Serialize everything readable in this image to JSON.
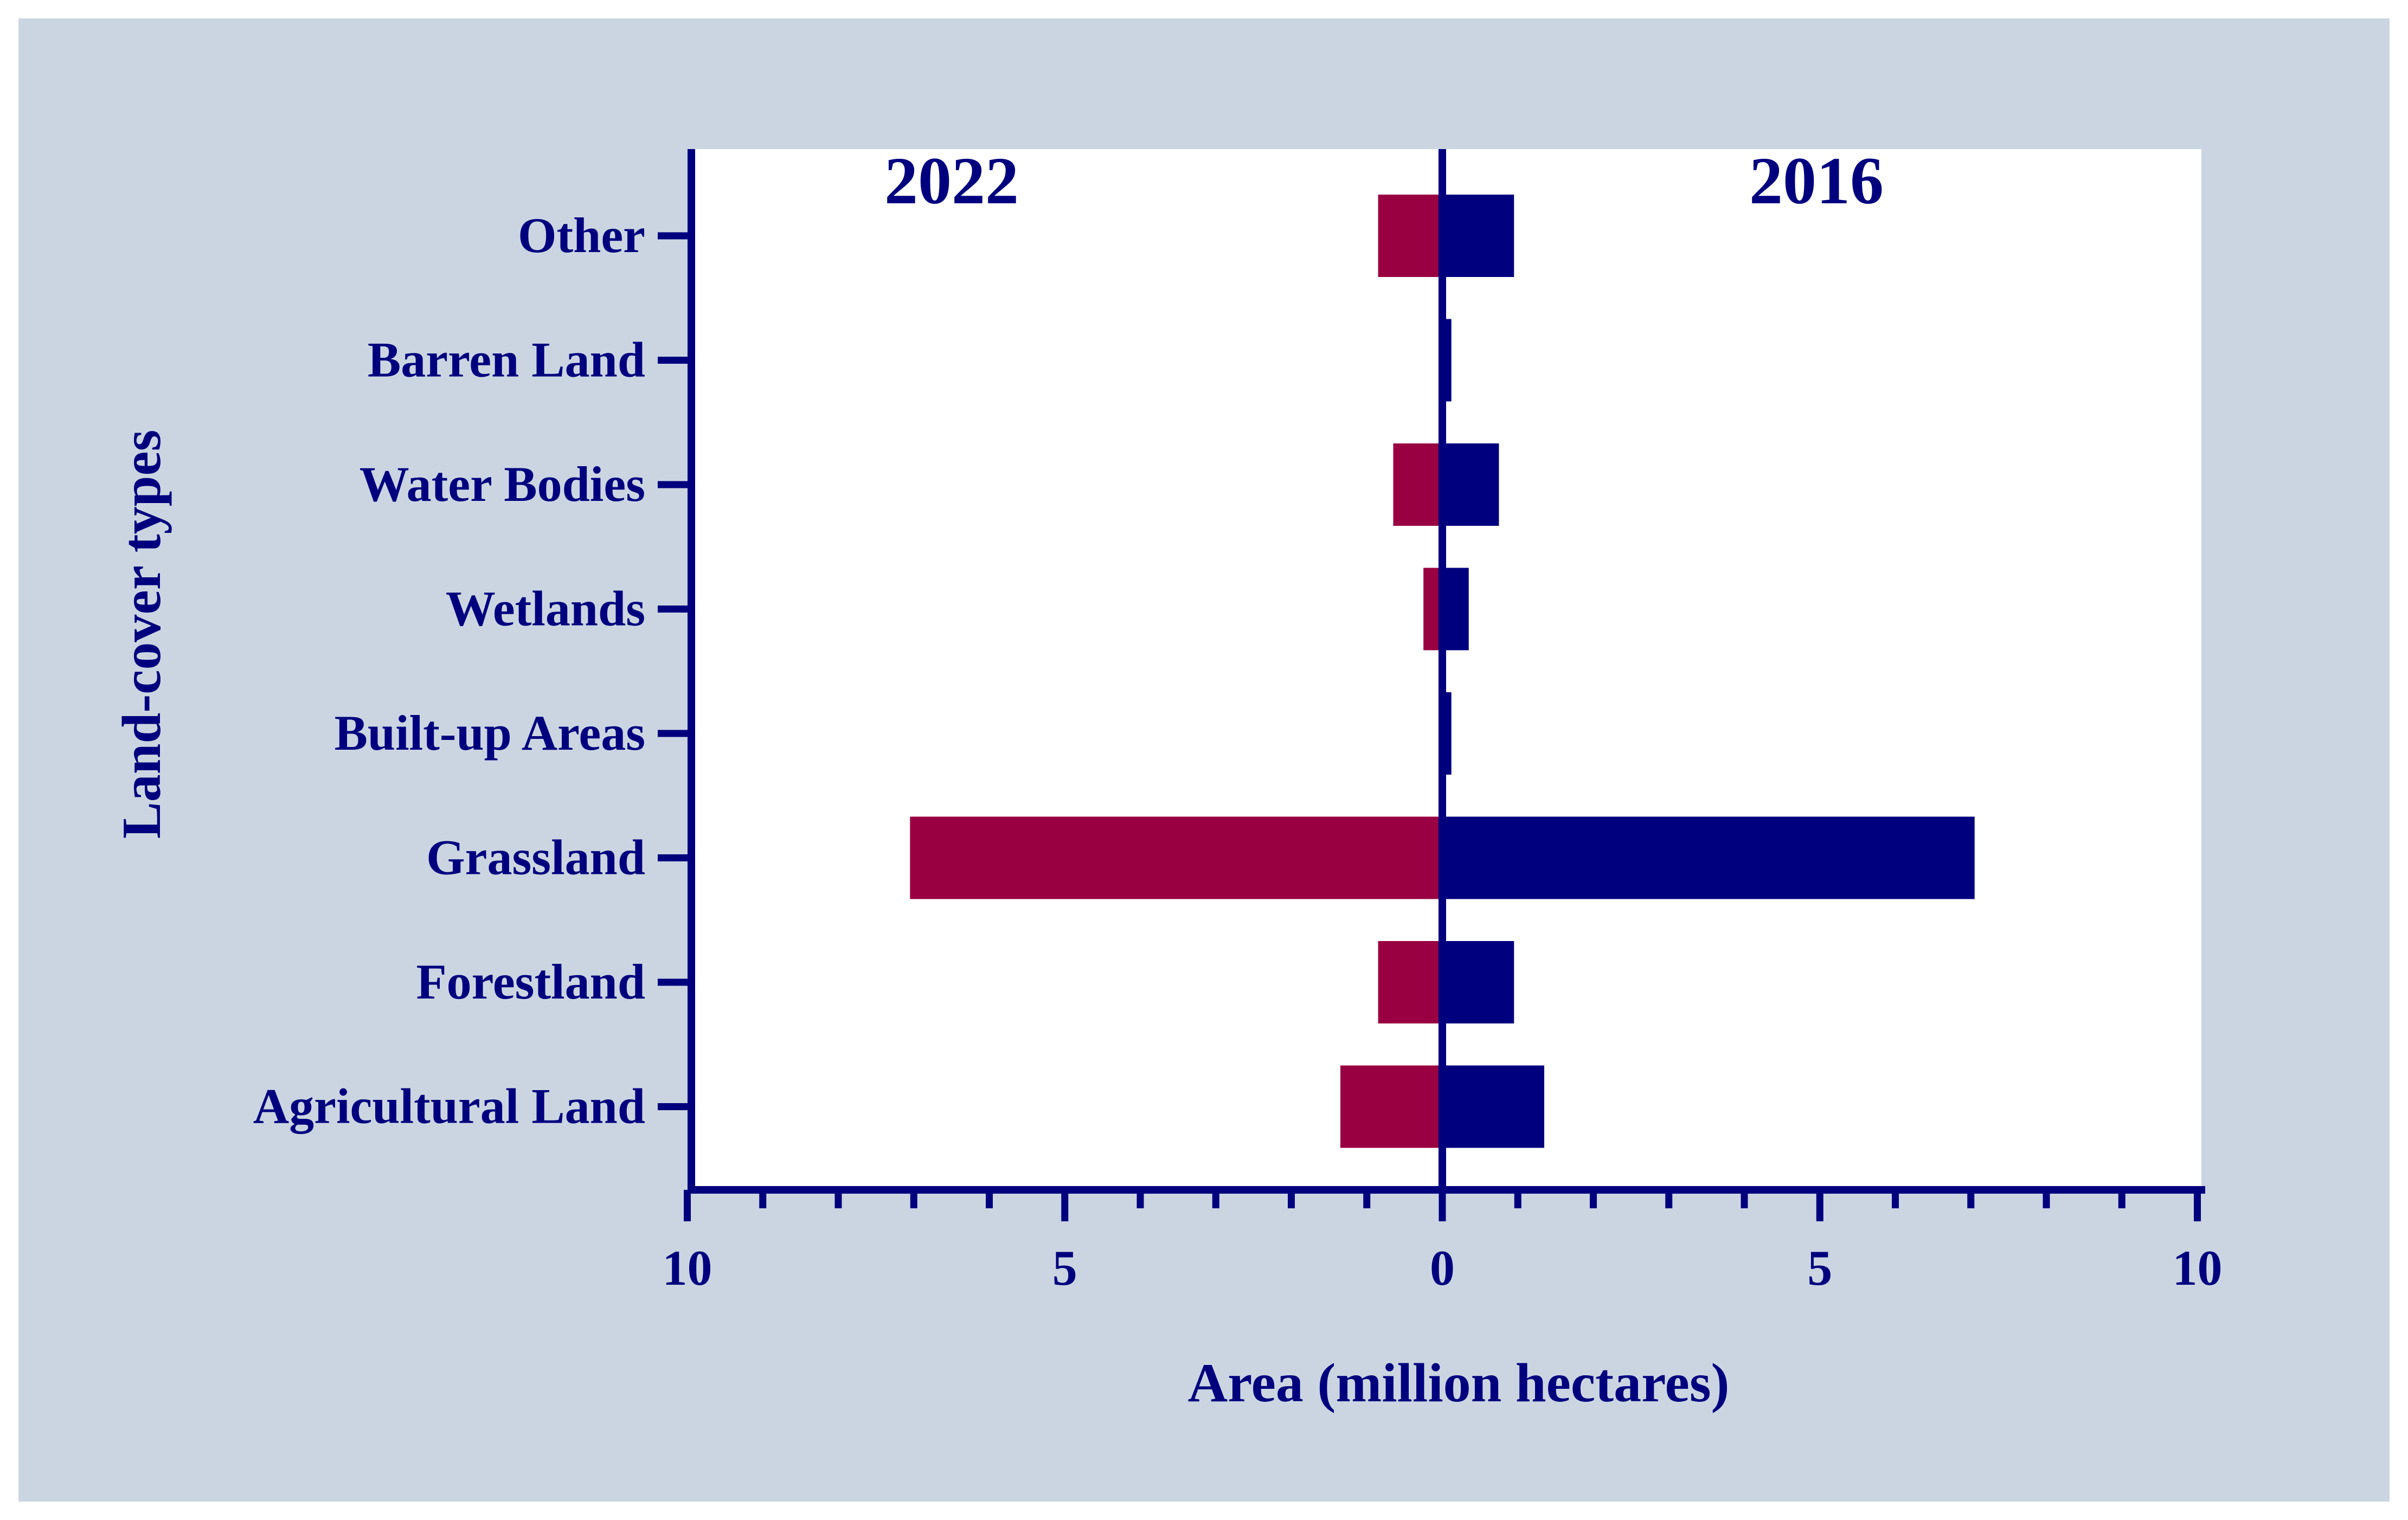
{
  "chart_data": {
    "type": "bar",
    "orientation": "horizontal",
    "layout": "back-to-back",
    "categories": [
      "Other",
      "Barren Land",
      "Water Bodies",
      "Wetlands",
      "Built-up Areas",
      "Grassland",
      "Forestland",
      "Agricultural Land"
    ],
    "series": [
      {
        "name": "2022",
        "side": "left",
        "values": [
          0.85,
          0.05,
          0.65,
          0.25,
          0.05,
          7.05,
          0.85,
          1.35
        ]
      },
      {
        "name": "2016",
        "side": "right",
        "values": [
          0.95,
          0.12,
          0.75,
          0.35,
          0.12,
          7.05,
          0.95,
          1.35
        ]
      }
    ],
    "xlabel": "Area (million hectares)",
    "ylabel": "Land-cover types",
    "xlim": [
      -10,
      10
    ],
    "x_ticks": [
      -10,
      -5,
      0,
      5,
      10
    ],
    "x_tick_labels": [
      "10",
      "5",
      "0",
      "5",
      "10"
    ],
    "minor_tick_step": 1,
    "colors": {
      "left_series": "#990041",
      "right_series": "#00007f",
      "axis": "#00007f",
      "text": "#00007f",
      "frame_background": "#cbd5e1",
      "plot_background": "#ffffff"
    }
  }
}
